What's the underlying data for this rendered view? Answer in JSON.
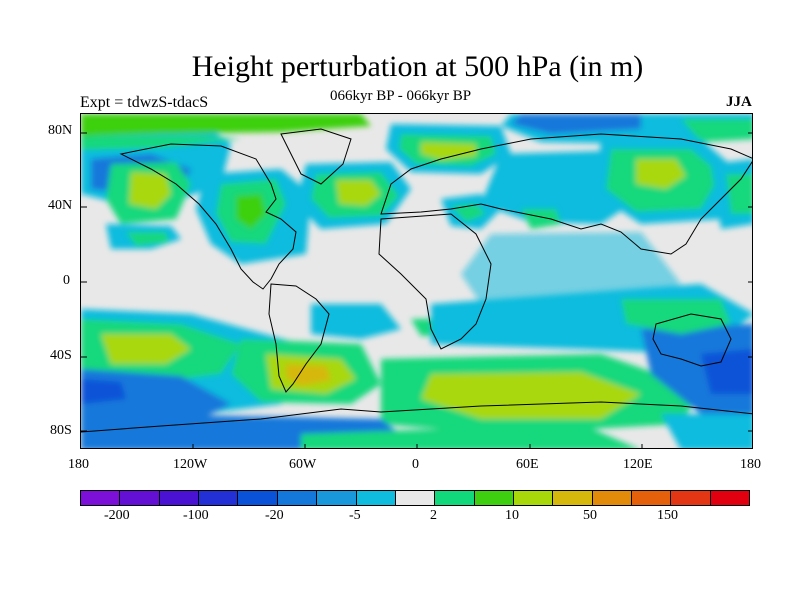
{
  "title": "Height perturbation at 500 hPa (in m)",
  "subtitle": "066kyr BP - 066kyr BP",
  "experiment": "Expt = tdwzS-tdacS",
  "season": "JJA",
  "lat_labels": [
    "80N",
    "40N",
    "0",
    "40S",
    "80S"
  ],
  "lon_labels": [
    "180",
    "120W",
    "60W",
    "0",
    "60E",
    "120E",
    "180"
  ],
  "colorbar": {
    "colors": [
      "#7d10d8",
      "#6410d4",
      "#4a12d2",
      "#2330d6",
      "#0a52d8",
      "#1478da",
      "#1a98dc",
      "#10bcde",
      "#e8e8e8",
      "#12d87c",
      "#3ed010",
      "#a8d80a",
      "#d6b80c",
      "#e28a0a",
      "#e4600a",
      "#e23614",
      "#e00010"
    ],
    "labels": [
      "-200",
      "-100",
      "-20",
      "-5",
      "2",
      "10",
      "50",
      "150"
    ]
  },
  "background_color": "#e8e8e8"
}
